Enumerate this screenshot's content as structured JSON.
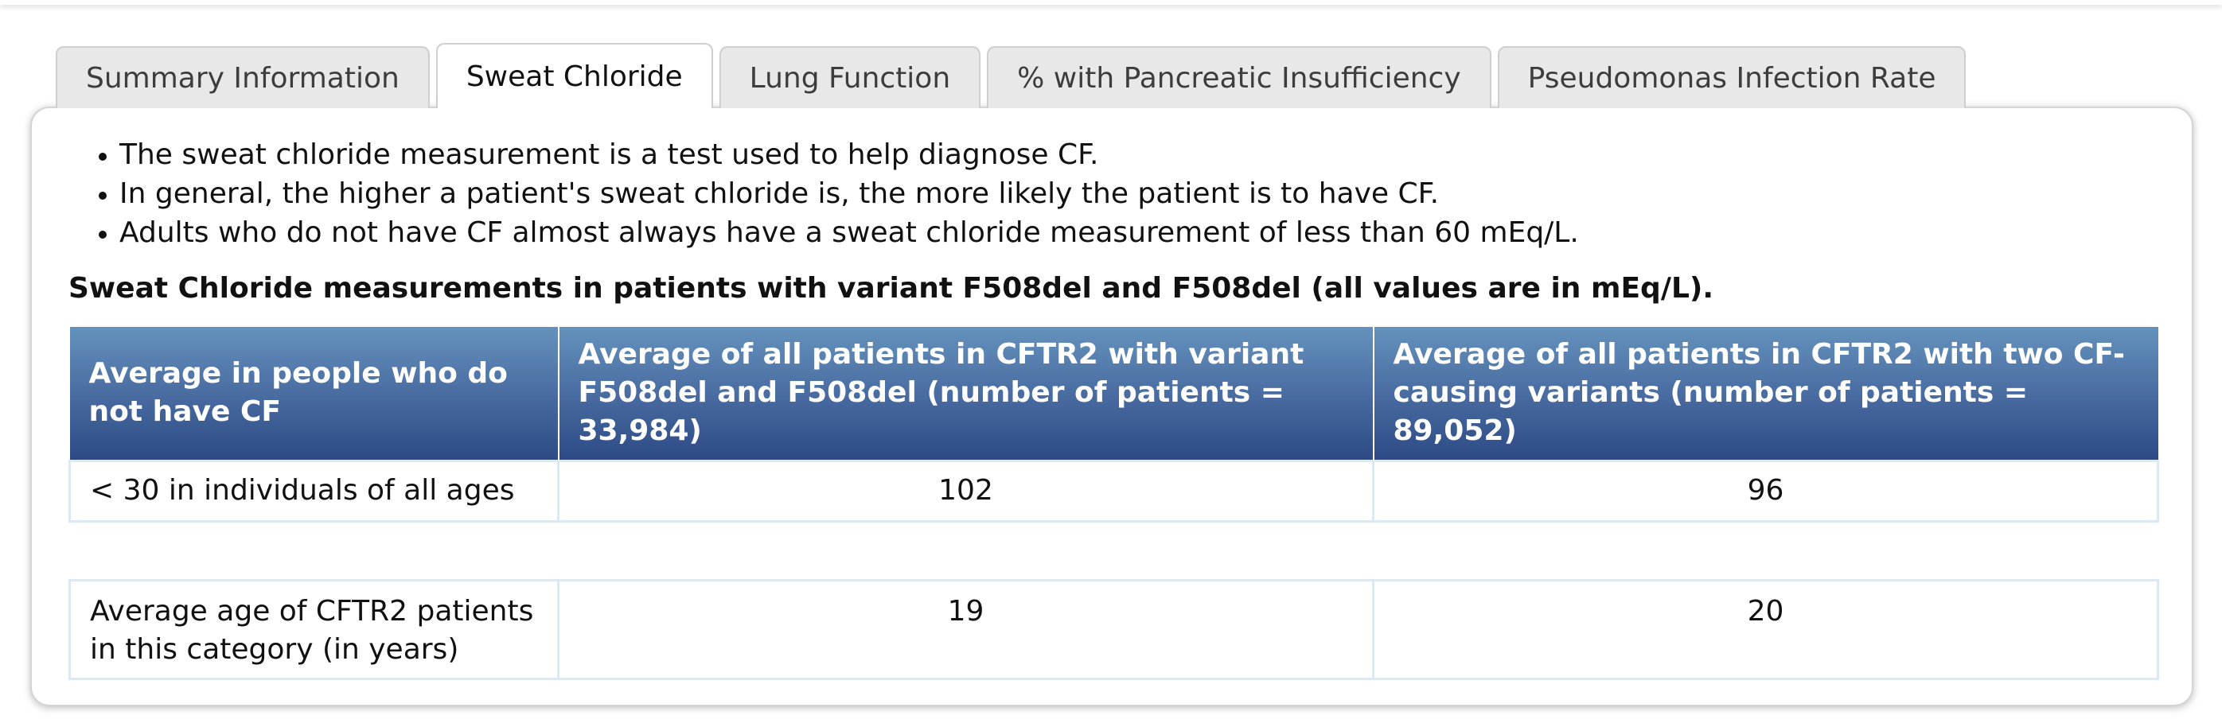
{
  "tabs": [
    {
      "label": "Summary Information",
      "active": false
    },
    {
      "label": "Sweat Chloride",
      "active": true
    },
    {
      "label": "Lung Function",
      "active": false
    },
    {
      "label": "% with Pancreatic Insufficiency",
      "active": false
    },
    {
      "label": "Pseudomonas Infection Rate",
      "active": false
    }
  ],
  "bullets": [
    "The sweat chloride measurement is a test used to help diagnose CF.",
    "In general, the higher a patient's sweat chloride is, the more likely the patient is to have CF.",
    "Adults who do not have CF almost always have a sweat chloride measurement of less than 60 mEq/L."
  ],
  "heading": "Sweat Chloride measurements in patients with variant F508del and F508del (all values are in mEq/L).",
  "table": {
    "headers": [
      "Average in people who do not have CF",
      "Average of all patients in CFTR2 with variant F508del and F508del (number of patients = 33,984)",
      "Average of all patients in CFTR2 with two CF-causing variants (number of patients = 89,052)"
    ],
    "row1": [
      "< 30 in individuals of all ages",
      "102",
      "96"
    ],
    "row2": [
      "Average age of CFTR2 patients in this category (in years)",
      "19",
      "20"
    ]
  },
  "colors": {
    "header_top": "#6592bd",
    "header_bottom": "#2d4a85",
    "cell_border": "#dde8f1",
    "tab_inactive": "#e8e8e8"
  }
}
